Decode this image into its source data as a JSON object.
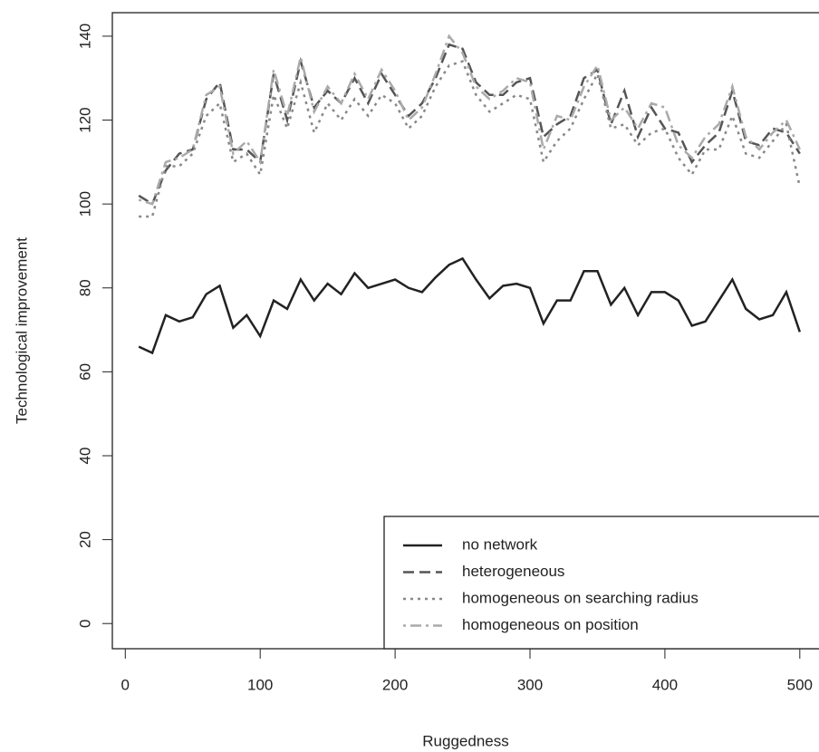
{
  "chart_data": {
    "type": "line",
    "x_label": "Ruggedness",
    "y_label": "Technological improvement",
    "x": [
      10,
      20,
      30,
      40,
      50,
      60,
      70,
      80,
      90,
      100,
      110,
      120,
      130,
      140,
      150,
      160,
      170,
      180,
      190,
      200,
      210,
      220,
      230,
      240,
      250,
      260,
      270,
      280,
      290,
      300,
      310,
      320,
      330,
      340,
      350,
      360,
      370,
      380,
      390,
      400,
      410,
      420,
      430,
      440,
      450,
      460,
      470,
      480,
      490,
      500
    ],
    "series": [
      {
        "name": "no network",
        "color": "#222222",
        "dash": "solid",
        "values": [
          66,
          64.5,
          73.5,
          72,
          73,
          78.5,
          80.5,
          70.5,
          73.5,
          68.5,
          77,
          75,
          82,
          77,
          81,
          78.5,
          83.5,
          80,
          81,
          82,
          80,
          79,
          82.5,
          85.5,
          87,
          82,
          77.5,
          80.5,
          81,
          80,
          71.5,
          77,
          77,
          84,
          84,
          76,
          80,
          73.5,
          79,
          79,
          77,
          71,
          72,
          77,
          82,
          75,
          72.5,
          73.5,
          79,
          69.5
        ]
      },
      {
        "name": "heterogeneous",
        "color": "#555555",
        "dash": "dashed",
        "values": [
          102,
          100,
          108,
          112,
          113,
          125,
          129,
          113,
          113,
          110,
          131,
          120,
          134,
          123,
          127,
          124,
          130,
          124,
          131,
          126,
          121,
          124,
          130,
          138,
          137,
          129,
          126,
          126,
          129,
          130,
          116,
          119,
          121,
          130,
          132,
          119,
          127,
          116,
          123,
          118,
          117,
          110,
          114,
          117,
          127,
          115,
          114,
          118,
          117,
          112
        ]
      },
      {
        "name": "homogeneous on searching radius",
        "color": "#888888",
        "dash": "dotted",
        "values": [
          97,
          97,
          109,
          109,
          112,
          121,
          124,
          110,
          112,
          107,
          126,
          118,
          129,
          117,
          124,
          120,
          125,
          121,
          126,
          124,
          118,
          121,
          128,
          133,
          134,
          126,
          122,
          124,
          126,
          125,
          110,
          115,
          118,
          125,
          131,
          118,
          119,
          114,
          117,
          118,
          111,
          107,
          113,
          113,
          121,
          112,
          111,
          115,
          119,
          104
        ]
      },
      {
        "name": "homogeneous on position",
        "color": "#aaaaaa",
        "dash": "dotdash",
        "values": [
          101,
          100,
          110,
          111,
          113,
          126,
          128,
          112,
          115,
          110,
          132,
          121,
          135,
          122,
          128,
          124,
          131,
          125,
          132,
          127,
          120,
          123,
          131,
          140,
          136,
          128,
          125,
          127,
          130,
          129,
          113,
          121,
          120,
          128,
          133,
          120,
          123,
          118,
          124,
          123,
          114,
          111,
          116,
          119,
          128,
          116,
          113,
          117,
          120,
          113
        ]
      }
    ],
    "xlim": [
      -9.6,
      519.6
    ],
    "ylim": [
      -6,
      145.6
    ],
    "xticks": [
      0,
      100,
      200,
      300,
      400,
      500
    ],
    "yticks": [
      0,
      20,
      40,
      60,
      80,
      100,
      120,
      140
    ],
    "legend": "bottom-right"
  }
}
